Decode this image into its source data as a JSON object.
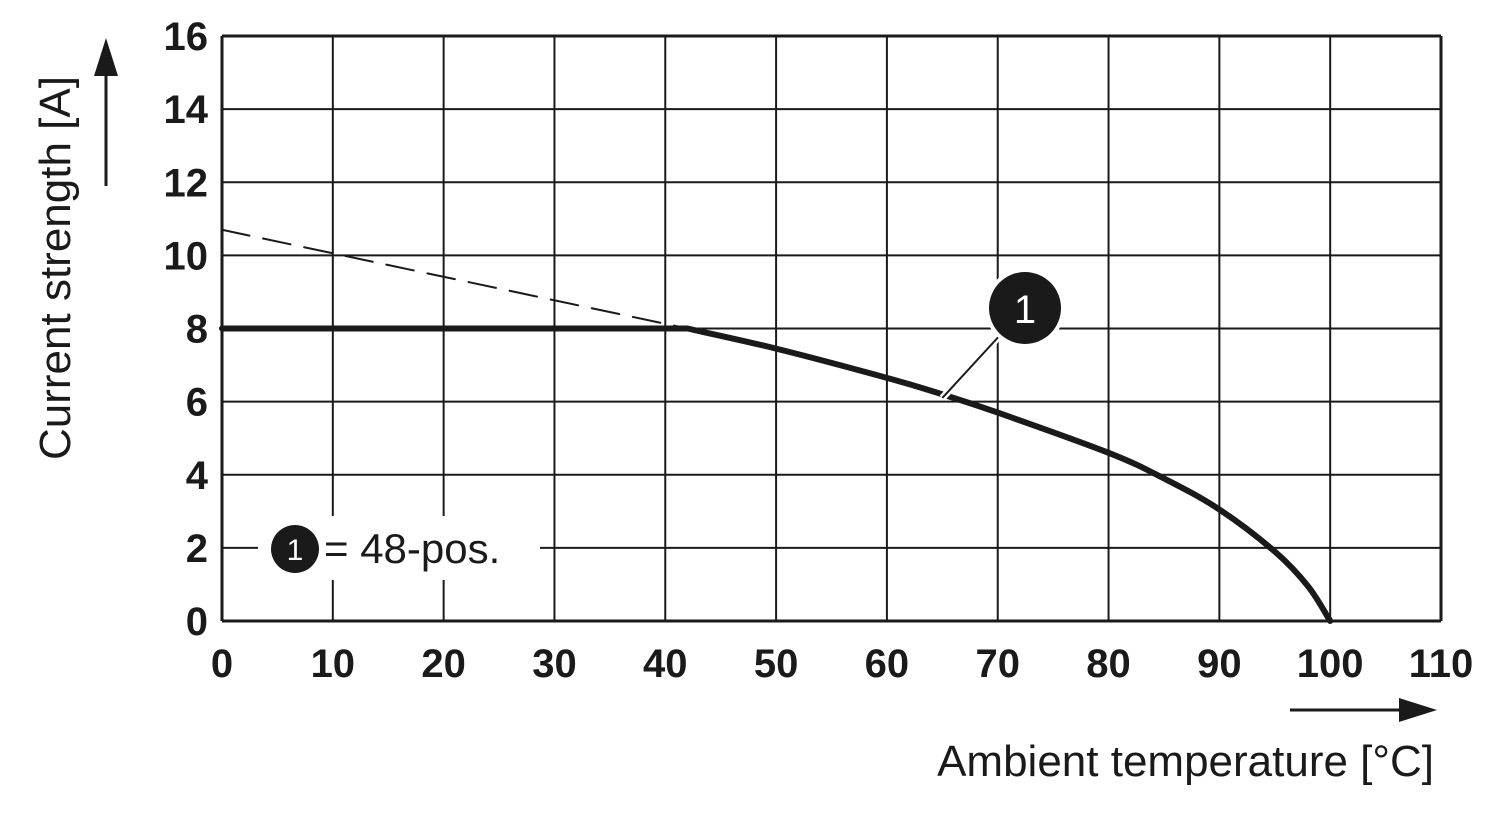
{
  "chart_data": {
    "type": "line",
    "title": "",
    "xlabel": "Ambient temperature [°C]",
    "ylabel": "Current strength [A]",
    "xlim": [
      0,
      110
    ],
    "ylim": [
      0,
      16
    ],
    "x_ticks": [
      0,
      10,
      20,
      30,
      40,
      50,
      60,
      70,
      80,
      90,
      100,
      110
    ],
    "y_ticks": [
      0,
      2,
      4,
      6,
      8,
      10,
      12,
      14,
      16
    ],
    "grid": true,
    "series": [
      {
        "name": "1",
        "style": "solid",
        "points": [
          [
            0,
            8
          ],
          [
            42,
            8
          ],
          [
            50,
            7.45
          ],
          [
            60,
            6.65
          ],
          [
            65,
            6.2
          ],
          [
            70,
            5.7
          ],
          [
            80,
            4.6
          ],
          [
            85,
            3.9
          ],
          [
            90,
            3.05
          ],
          [
            95,
            1.9
          ],
          [
            98,
            0.95
          ],
          [
            100,
            0
          ]
        ]
      },
      {
        "name": "",
        "style": "dashed",
        "points": [
          [
            0,
            10.7
          ],
          [
            42,
            8
          ]
        ]
      }
    ],
    "callout": {
      "label": "1",
      "target": [
        65,
        6.1
      ]
    },
    "legend": {
      "marker": "1",
      "text": "= 48-pos.",
      "position": "bottom-left"
    }
  },
  "colors": {
    "line": "#1a1a1a",
    "grid": "#1a1a1a",
    "background": "#ffffff"
  }
}
